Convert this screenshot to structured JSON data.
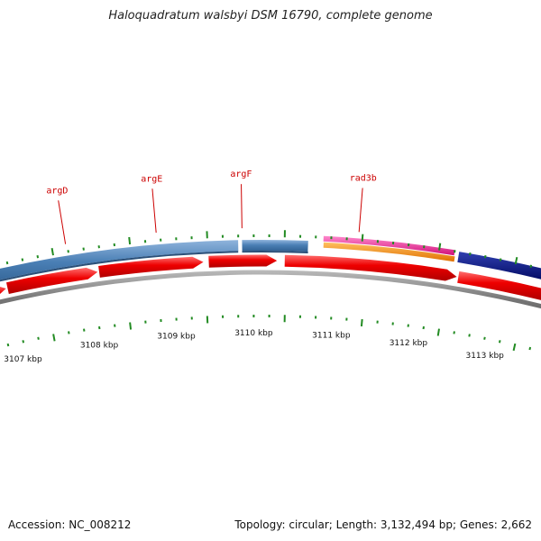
{
  "title": "Haloquadratum walsbyi DSM 16790, complete genome",
  "footer": {
    "accession": "Accession: NC_008212",
    "summary": "Topology: circular; Length: 3,132,494 bp; Genes: 2,662"
  },
  "colors": {
    "gene_label": "#cc0000",
    "cds_blue": "#4a7fb5",
    "cds_red": "#ee0000",
    "magenta": "#ee2299",
    "orange": "#ff8800",
    "navy": "#001080",
    "backbone": "#888888",
    "tick": "#228b22"
  },
  "axis": {
    "unit": "kbp",
    "ticks": [
      {
        "label": "3107 kbp",
        "kbp": 3107
      },
      {
        "label": "3108 kbp",
        "kbp": 3108
      },
      {
        "label": "3109 kbp",
        "kbp": 3109
      },
      {
        "label": "3110 kbp",
        "kbp": 3110
      },
      {
        "label": "3111 kbp",
        "kbp": 3111
      },
      {
        "label": "3112 kbp",
        "kbp": 3112
      },
      {
        "label": "3113 kbp",
        "kbp": 3113
      }
    ]
  },
  "gene_labels": [
    {
      "name": "argD",
      "kbp": 3107.58
    },
    {
      "name": "argE",
      "kbp": 3108.75
    },
    {
      "name": "argF",
      "kbp": 3109.85
    },
    {
      "name": "rad3b",
      "kbp": 3111.35
    }
  ],
  "features": {
    "blue_segments": [
      {
        "start": 3106.2,
        "end": 3109.8
      },
      {
        "start": 3109.85,
        "end": 3110.7
      }
    ],
    "red_arrows": [
      {
        "start": 3106.2,
        "end": 3106.78
      },
      {
        "start": 3106.8,
        "end": 3107.98
      },
      {
        "start": 3108.0,
        "end": 3109.35
      },
      {
        "start": 3109.42,
        "end": 3110.3
      },
      {
        "start": 3110.4,
        "end": 3112.63
      },
      {
        "start": 3112.65,
        "end": 3113.9
      }
    ],
    "magenta_segments": [
      {
        "start": 3110.9,
        "end": 3112.6
      }
    ],
    "orange_segments": [
      {
        "start": 3110.9,
        "end": 3112.6
      }
    ],
    "navy_segments": [
      {
        "start": 3112.65,
        "end": 3113.9
      }
    ]
  }
}
